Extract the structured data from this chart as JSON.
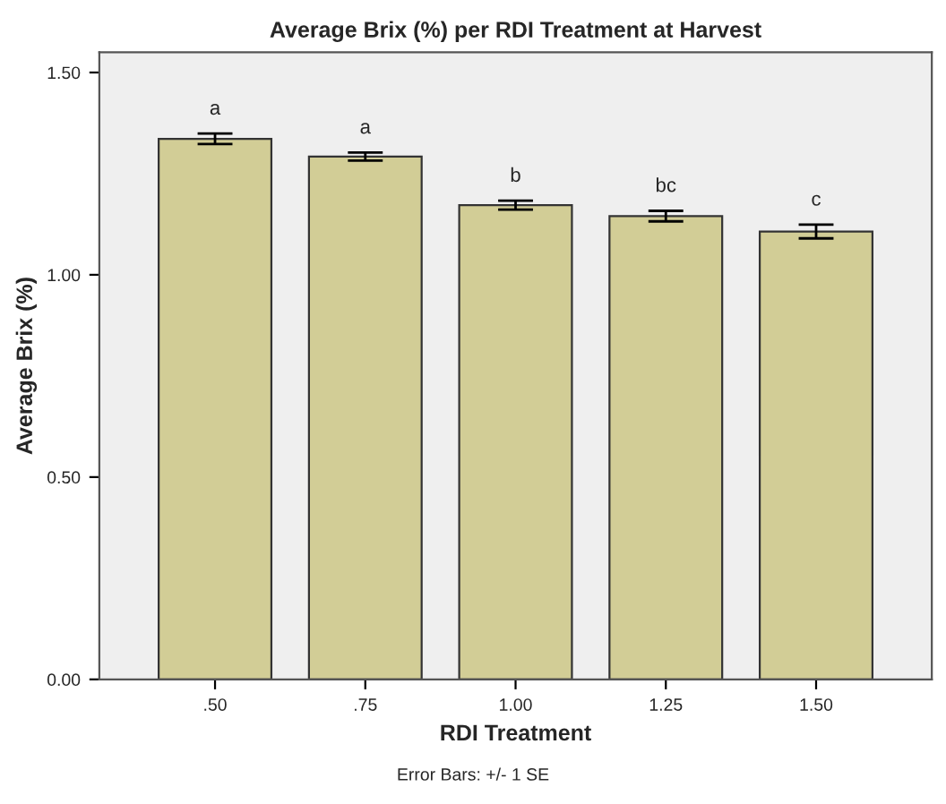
{
  "chart_data": {
    "type": "bar",
    "title": "Average Brix (%) per RDI Treatment at Harvest",
    "xlabel": "RDI Treatment",
    "ylabel": "Average Brix (%)",
    "categories": [
      ".50",
      ".75",
      "1.00",
      "1.25",
      "1.50"
    ],
    "values": [
      1.336,
      1.292,
      1.172,
      1.145,
      1.107
    ],
    "errors": [
      0.013,
      0.01,
      0.011,
      0.013,
      0.017
    ],
    "color": "#d2cd96",
    "ylim": [
      0,
      1.55
    ],
    "yticks": [
      {
        "value": 0,
        "label": "0.00"
      },
      {
        "value": 0.5,
        "label": "0.50"
      },
      {
        "value": 1.0,
        "label": "1.00"
      },
      {
        "value": 1.5,
        "label": "1.50"
      }
    ],
    "grid": false,
    "annotations": [
      {
        "text": "a",
        "x": ".50",
        "y": 1.349
      },
      {
        "text": "a",
        "x": ".75",
        "y": 1.302
      },
      {
        "text": "b",
        "x": "1.00",
        "y": 1.183
      },
      {
        "text": "bc",
        "x": "1.25",
        "y": 1.158
      },
      {
        "text": "c",
        "x": "1.50",
        "y": 1.124
      },
      "Error Bars: +/- 1 SE"
    ]
  }
}
